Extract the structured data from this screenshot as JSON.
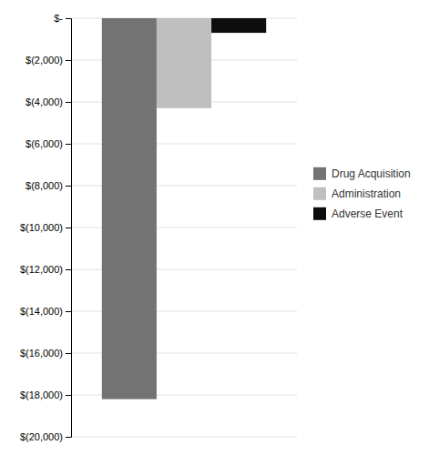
{
  "chart_data": {
    "type": "bar",
    "categories": [
      null
    ],
    "series": [
      {
        "name": "Drug Acquisition",
        "color": "#737373",
        "values": [
          -18200
        ]
      },
      {
        "name": "Administration",
        "color": "#bfbfbf",
        "values": [
          -4300
        ]
      },
      {
        "name": "Adverse Event",
        "color": "#0d0d0d",
        "values": [
          -700
        ]
      }
    ],
    "ylim": [
      -20000,
      0
    ],
    "yticks": [
      {
        "value": 0,
        "label": "$-"
      },
      {
        "value": -2000,
        "label": "$(2,000)"
      },
      {
        "value": -4000,
        "label": "$(4,000)"
      },
      {
        "value": -6000,
        "label": "$(6,000)"
      },
      {
        "value": -8000,
        "label": "$(8,000)"
      },
      {
        "value": -10000,
        "label": "$(10,000)"
      },
      {
        "value": -12000,
        "label": "$(12,000)"
      },
      {
        "value": -14000,
        "label": "$(14,000)"
      },
      {
        "value": -16000,
        "label": "$(16,000)"
      },
      {
        "value": -18000,
        "label": "$(18,000)"
      },
      {
        "value": -20000,
        "label": "$(20,000)"
      }
    ],
    "grid": true,
    "legend": "right",
    "tick_labels": "y"
  }
}
